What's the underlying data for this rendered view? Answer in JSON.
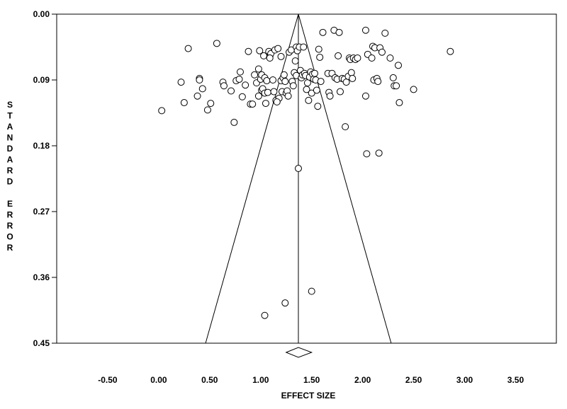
{
  "chart_data": {
    "type": "scatter",
    "xlabel": "EFFECT SIZE",
    "ylabel": "STANDARD ERROR",
    "xlim": [
      -1.0,
      3.9
    ],
    "ylim": [
      0.45,
      0.0
    ],
    "y_inverted": true,
    "x_ticks": [
      -0.5,
      0.0,
      0.5,
      1.0,
      1.5,
      2.0,
      2.5,
      3.0,
      3.5
    ],
    "x_tick_labels": [
      "-0.50",
      "0.00",
      "0.50",
      "1.00",
      "1.50",
      "2.00",
      "2.50",
      "3.00",
      "3.50"
    ],
    "y_ticks": [
      0.0,
      0.09,
      0.18,
      0.27,
      0.36,
      0.45
    ],
    "y_tick_labels": [
      "0.00",
      "0.09",
      "0.18",
      "0.27",
      "0.36",
      "0.45"
    ],
    "grid": false,
    "legend": "none",
    "summary_effect": 1.37,
    "summary_ci": [
      1.25,
      1.5
    ],
    "funnel_bottom_x": [
      0.46,
      2.28
    ],
    "points": [
      [
        0.03,
        0.132
      ],
      [
        0.22,
        0.093
      ],
      [
        0.25,
        0.121
      ],
      [
        0.29,
        0.047
      ],
      [
        0.38,
        0.112
      ],
      [
        0.4,
        0.088
      ],
      [
        0.4,
        0.09
      ],
      [
        0.43,
        0.102
      ],
      [
        0.48,
        0.131
      ],
      [
        0.51,
        0.122
      ],
      [
        0.63,
        0.093
      ],
      [
        0.64,
        0.098
      ],
      [
        0.71,
        0.105
      ],
      [
        0.74,
        0.148
      ],
      [
        0.76,
        0.091
      ],
      [
        0.79,
        0.089
      ],
      [
        0.8,
        0.079
      ],
      [
        0.82,
        0.113
      ],
      [
        0.85,
        0.097
      ],
      [
        0.88,
        0.051
      ],
      [
        0.9,
        0.123
      ],
      [
        0.92,
        0.123
      ],
      [
        0.94,
        0.083
      ],
      [
        0.96,
        0.094
      ],
      [
        0.98,
        0.112
      ],
      [
        0.99,
        0.05
      ],
      [
        1.0,
        0.089
      ],
      [
        1.01,
        0.083
      ],
      [
        1.01,
        0.104
      ],
      [
        1.02,
        0.102
      ],
      [
        1.03,
        0.057
      ],
      [
        1.04,
        0.087
      ],
      [
        1.04,
        0.108
      ],
      [
        1.05,
        0.122
      ],
      [
        1.06,
        0.091
      ],
      [
        1.07,
        0.107
      ],
      [
        1.08,
        0.051
      ],
      [
        1.09,
        0.058
      ],
      [
        1.1,
        0.054
      ],
      [
        1.12,
        0.09
      ],
      [
        1.13,
        0.106
      ],
      [
        1.14,
        0.049
      ],
      [
        1.15,
        0.118
      ],
      [
        1.17,
        0.047
      ],
      [
        1.18,
        0.115
      ],
      [
        1.2,
        0.091
      ],
      [
        1.21,
        0.106
      ],
      [
        1.22,
        0.087
      ],
      [
        1.23,
        0.083
      ],
      [
        1.24,
        0.092
      ],
      [
        1.25,
        0.108
      ],
      [
        1.26,
        0.105
      ],
      [
        1.27,
        0.112
      ],
      [
        1.28,
        0.052
      ],
      [
        1.3,
        0.049
      ],
      [
        1.31,
        0.092
      ],
      [
        1.32,
        0.098
      ],
      [
        1.33,
        0.08
      ],
      [
        1.34,
        0.064
      ],
      [
        1.35,
        0.045
      ],
      [
        1.35,
        0.084
      ],
      [
        1.36,
        0.05
      ],
      [
        1.37,
        0.211
      ],
      [
        1.38,
        0.045
      ],
      [
        1.39,
        0.077
      ],
      [
        1.4,
        0.087
      ],
      [
        1.41,
        0.083
      ],
      [
        1.42,
        0.045
      ],
      [
        1.43,
        0.081
      ],
      [
        1.44,
        0.084
      ],
      [
        1.45,
        0.103
      ],
      [
        1.46,
        0.094
      ],
      [
        1.47,
        0.118
      ],
      [
        1.48,
        0.086
      ],
      [
        1.49,
        0.079
      ],
      [
        1.5,
        0.108
      ],
      [
        1.51,
        0.082
      ],
      [
        1.52,
        0.089
      ],
      [
        1.53,
        0.081
      ],
      [
        1.54,
        0.09
      ],
      [
        1.55,
        0.104
      ],
      [
        1.56,
        0.126
      ],
      [
        1.57,
        0.048
      ],
      [
        1.58,
        0.059
      ],
      [
        1.59,
        0.092
      ],
      [
        1.61,
        0.025
      ],
      [
        1.66,
        0.081
      ],
      [
        1.67,
        0.107
      ],
      [
        1.68,
        0.112
      ],
      [
        1.7,
        0.081
      ],
      [
        1.72,
        0.022
      ],
      [
        1.73,
        0.087
      ],
      [
        1.75,
        0.089
      ],
      [
        1.76,
        0.057
      ],
      [
        1.77,
        0.025
      ],
      [
        1.78,
        0.106
      ],
      [
        1.8,
        0.088
      ],
      [
        1.82,
        0.089
      ],
      [
        1.83,
        0.154
      ],
      [
        1.84,
        0.093
      ],
      [
        1.86,
        0.085
      ],
      [
        1.87,
        0.06
      ],
      [
        1.88,
        0.062
      ],
      [
        1.89,
        0.08
      ],
      [
        1.9,
        0.088
      ],
      [
        1.91,
        0.06
      ],
      [
        1.93,
        0.062
      ],
      [
        1.95,
        0.06
      ],
      [
        2.03,
        0.022
      ],
      [
        2.03,
        0.112
      ],
      [
        2.04,
        0.191
      ],
      [
        2.05,
        0.055
      ],
      [
        2.09,
        0.06
      ],
      [
        2.1,
        0.044
      ],
      [
        2.11,
        0.09
      ],
      [
        2.12,
        0.046
      ],
      [
        2.14,
        0.088
      ],
      [
        2.15,
        0.092
      ],
      [
        2.16,
        0.19
      ],
      [
        2.17,
        0.046
      ],
      [
        2.19,
        0.052
      ],
      [
        2.22,
        0.026
      ],
      [
        2.27,
        0.06
      ],
      [
        2.3,
        0.087
      ],
      [
        2.31,
        0.098
      ],
      [
        2.33,
        0.098
      ],
      [
        2.35,
        0.07
      ],
      [
        2.36,
        0.121
      ],
      [
        2.5,
        0.103
      ],
      [
        2.86,
        0.051
      ],
      [
        1.5,
        0.379
      ],
      [
        1.24,
        0.395
      ],
      [
        1.04,
        0.412
      ],
      [
        0.57,
        0.04
      ],
      [
        0.98,
        0.075
      ],
      [
        1.09,
        0.06
      ],
      [
        1.2,
        0.058
      ],
      [
        1.16,
        0.12
      ]
    ]
  }
}
